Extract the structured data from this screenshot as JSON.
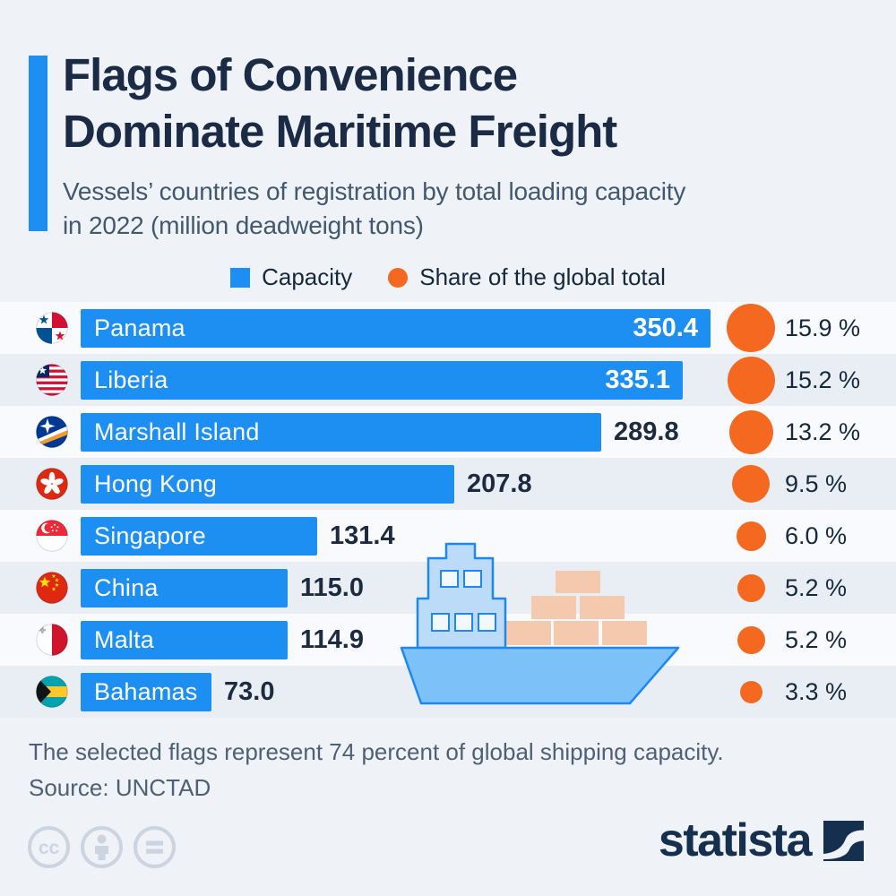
{
  "header": {
    "title_line1": "Flags of Convenience",
    "title_line2": "Dominate Maritime Freight",
    "subtitle_line1": "Vessels’ countries of registration by total loading capacity",
    "subtitle_line2": "in 2022 (million deadweight tons)"
  },
  "legend": {
    "capacity_label": "Capacity",
    "share_label": "Share of the global total"
  },
  "chart_data": {
    "type": "bar",
    "orientation": "horizontal",
    "unit": "million deadweight tons",
    "categories": [
      "Panama",
      "Liberia",
      "Marshall Island",
      "Hong Kong",
      "Singapore",
      "China",
      "Malta",
      "Bahamas"
    ],
    "flags": [
      "panama",
      "liberia",
      "marshall-islands",
      "hong-kong",
      "singapore",
      "china",
      "malta",
      "bahamas"
    ],
    "series": [
      {
        "name": "Capacity",
        "unit": "million deadweight tons",
        "values": [
          350.4,
          335.1,
          289.8,
          207.8,
          131.4,
          115.0,
          114.9,
          73.0
        ]
      },
      {
        "name": "Share of the global total",
        "unit": "%",
        "values": [
          15.9,
          15.2,
          13.2,
          9.5,
          6.0,
          5.2,
          5.2,
          3.3
        ]
      }
    ],
    "xlim": [
      0,
      360
    ],
    "grid": false,
    "legend_position": "top"
  },
  "footer": {
    "note": "The selected flags represent 74 percent of global shipping capacity.",
    "source": "Source: UNCTAD",
    "brand": "statista"
  },
  "colors": {
    "background": "#eff3f8",
    "row_light": "#f8fafd",
    "row_dark": "#e9eef5",
    "bar_blue": "#1e8ff2",
    "share_orange": "#f4691f",
    "title_navy": "#1b2b45",
    "subtitle_gray": "#42586f",
    "footer_gray": "#4e6076",
    "brand_navy": "#15304e"
  }
}
